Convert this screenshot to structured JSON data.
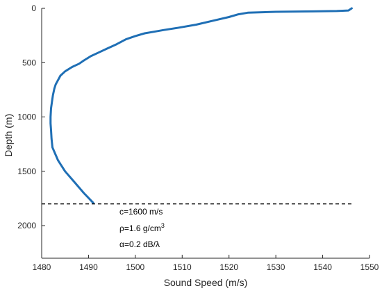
{
  "chart_data": {
    "type": "line",
    "xlabel": "Sound Speed (m/s)",
    "ylabel": "Depth (m)",
    "xlim": [
      1480,
      1550
    ],
    "ylim": [
      0,
      2300
    ],
    "y_reversed": true,
    "x_ticks": [
      "1480",
      "1490",
      "1500",
      "1510",
      "1520",
      "1530",
      "1540",
      "1550"
    ],
    "y_ticks": [
      "0",
      "500",
      "1000",
      "1500",
      "2000"
    ],
    "grid": false,
    "line_color": "#1f6fb5",
    "series": [
      {
        "x": [
          1546.2,
          1545.5,
          1543,
          1538,
          1530,
          1524,
          1522,
          1520,
          1517,
          1513,
          1509,
          1506,
          1504,
          1502,
          1500,
          1498,
          1496,
          1494,
          1492,
          1490.5,
          1489,
          1488,
          1486.5,
          1485,
          1484,
          1483.5,
          1483,
          1482.7,
          1482.4,
          1482.2,
          1482,
          1481.9,
          1481.9,
          1482,
          1482.1,
          1482.3,
          1482.7,
          1483.5,
          1485,
          1487,
          1489,
          1491
        ],
        "y": [
          0,
          20,
          25,
          28,
          32,
          40,
          55,
          80,
          110,
          150,
          180,
          200,
          215,
          230,
          255,
          285,
          330,
          370,
          410,
          440,
          480,
          510,
          540,
          580,
          620,
          660,
          700,
          740,
          800,
          860,
          920,
          1000,
          1060,
          1120,
          1200,
          1280,
          1320,
          1400,
          1500,
          1600,
          1700,
          1790
        ]
      }
    ],
    "seafloor": {
      "depth": 1800,
      "style": "dashed"
    },
    "annotations": [
      {
        "text": "c=1600 m/s"
      },
      {
        "text": "ρ=1.6 g/cm",
        "sup": "3"
      },
      {
        "text": "α=0.2 dB/λ"
      }
    ]
  }
}
